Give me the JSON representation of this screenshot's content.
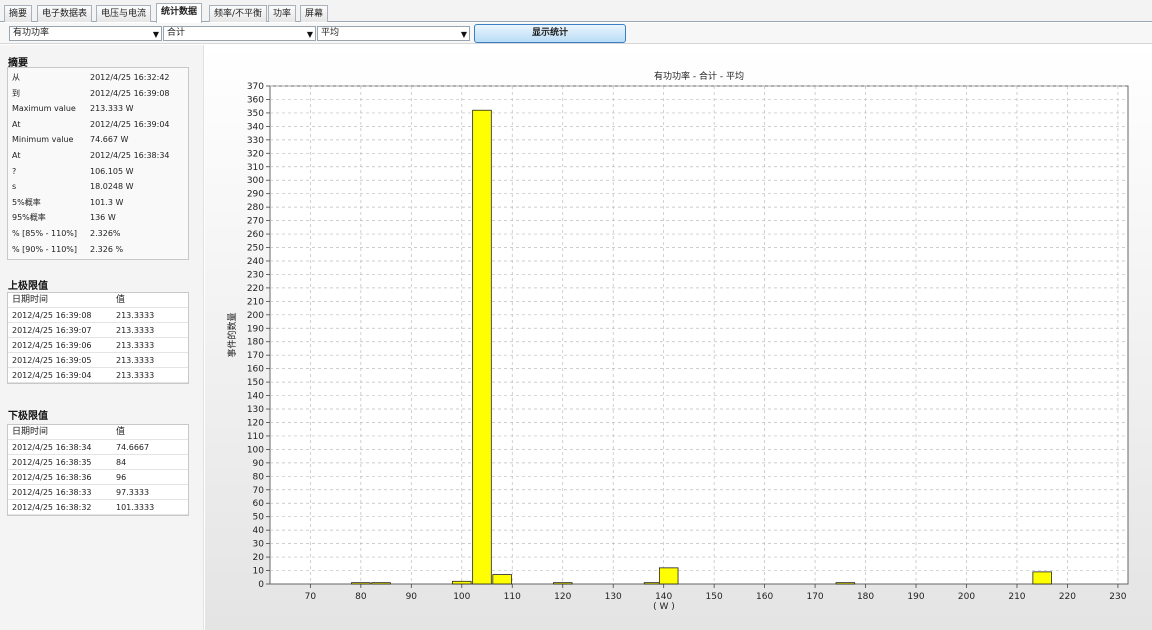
{
  "tabs": [
    {
      "label": "摘要"
    },
    {
      "label": "电子数据表"
    },
    {
      "label": "电压与电流"
    },
    {
      "label": "统计数据"
    },
    {
      "label": "频率/不平衡"
    },
    {
      "label": "功率"
    },
    {
      "label": "屏幕"
    }
  ],
  "toolbar": {
    "combo_parameter": "有功功率",
    "combo_phase": "合计",
    "combo_mode": "平均",
    "show_button": "显示统计"
  },
  "summary": {
    "title": "摘要",
    "rows": [
      {
        "key": "从",
        "value": "2012/4/25 16:32:42"
      },
      {
        "key": "到",
        "value": "2012/4/25 16:39:08"
      },
      {
        "key": "Maximum value",
        "value": "213.333 W"
      },
      {
        "key": "At",
        "value": "2012/4/25 16:39:04"
      },
      {
        "key": "Minimum value",
        "value": "74.667 W"
      },
      {
        "key": "At",
        "value": "2012/4/25 16:38:34"
      },
      {
        "key": "?",
        "value": "106.105 W"
      },
      {
        "key": "s",
        "value": "18.0248 W"
      },
      {
        "key": "5%概率",
        "value": "101.3 W"
      },
      {
        "key": "95%概率",
        "value": "136 W"
      },
      {
        "key": "% [85% - 110%]",
        "value": "2.326%"
      },
      {
        "key": "% [90% - 110%]",
        "value": "2.326 %"
      }
    ]
  },
  "upper_limits": {
    "title": "上极限值",
    "col_time": "日期时间",
    "col_value": "值",
    "rows": [
      {
        "time": "2012/4/25 16:39:08",
        "value": "213.3333"
      },
      {
        "time": "2012/4/25 16:39:07",
        "value": "213.3333"
      },
      {
        "time": "2012/4/25 16:39:06",
        "value": "213.3333"
      },
      {
        "time": "2012/4/25 16:39:05",
        "value": "213.3333"
      },
      {
        "time": "2012/4/25 16:39:04",
        "value": "213.3333"
      }
    ]
  },
  "lower_limits": {
    "title": "下极限值",
    "col_time": "日期时间",
    "col_value": "值",
    "rows": [
      {
        "time": "2012/4/25 16:38:34",
        "value": "74.6667"
      },
      {
        "time": "2012/4/25 16:38:35",
        "value": "84"
      },
      {
        "time": "2012/4/25 16:38:36",
        "value": "96"
      },
      {
        "time": "2012/4/25 16:38:33",
        "value": "97.3333"
      },
      {
        "time": "2012/4/25 16:38:32",
        "value": "101.3333"
      }
    ]
  },
  "chart_data": {
    "type": "bar",
    "title": "有功功率 - 合计 - 平均",
    "xlabel": "( W )",
    "ylabel": "事件的数量",
    "xlim": [
      62,
      232
    ],
    "ylim": [
      0,
      370
    ],
    "x_ticks": [
      70,
      80,
      90,
      100,
      110,
      120,
      130,
      140,
      150,
      160,
      170,
      180,
      190,
      200,
      210,
      220,
      230
    ],
    "y_ticks": [
      0,
      10,
      20,
      30,
      40,
      50,
      60,
      70,
      80,
      90,
      100,
      110,
      120,
      130,
      140,
      150,
      160,
      170,
      180,
      190,
      200,
      210,
      220,
      230,
      240,
      250,
      260,
      270,
      280,
      290,
      300,
      310,
      320,
      330,
      340,
      350,
      360,
      370
    ],
    "bin_width": 3.7,
    "bars": [
      {
        "x": 80,
        "value": 1
      },
      {
        "x": 84,
        "value": 1
      },
      {
        "x": 100,
        "value": 2
      },
      {
        "x": 104,
        "value": 352
      },
      {
        "x": 108,
        "value": 7
      },
      {
        "x": 120,
        "value": 1
      },
      {
        "x": 138,
        "value": 1
      },
      {
        "x": 141,
        "value": 12
      },
      {
        "x": 176,
        "value": 1
      },
      {
        "x": 215,
        "value": 9
      }
    ],
    "bar_color": "#ffff00",
    "grid": true
  }
}
